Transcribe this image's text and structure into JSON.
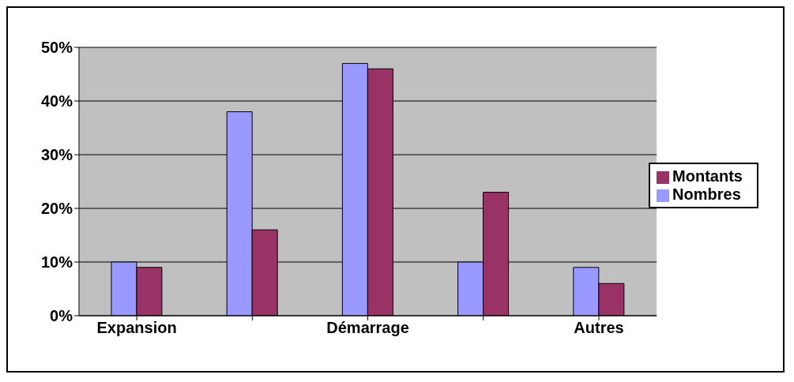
{
  "chart_data": {
    "type": "bar",
    "categories": [
      "Expansion",
      null,
      "Démarrage",
      null,
      "Autres"
    ],
    "series": [
      {
        "name": "Nombres",
        "color": "#9999ff",
        "values": [
          10,
          38,
          47,
          10,
          9
        ]
      },
      {
        "name": "Montants",
        "color": "#993366",
        "values": [
          9,
          16,
          46,
          23,
          6
        ]
      }
    ],
    "ylim": [
      0,
      50
    ],
    "yticks": [
      {
        "value": 0,
        "label": "0%"
      },
      {
        "value": 10,
        "label": "10%"
      },
      {
        "value": 20,
        "label": "20%"
      },
      {
        "value": 30,
        "label": "30%"
      },
      {
        "value": 40,
        "label": "40%"
      },
      {
        "value": 50,
        "label": "50%"
      }
    ],
    "grid": "y",
    "legend": "right"
  }
}
